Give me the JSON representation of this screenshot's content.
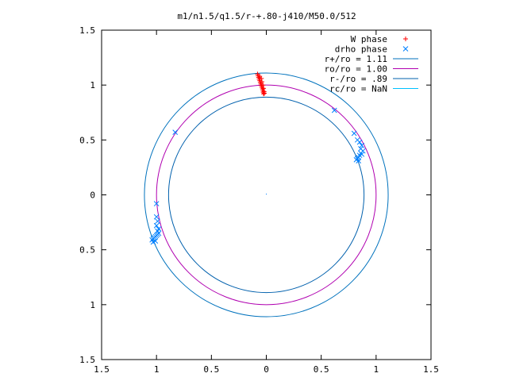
{
  "chart_data": {
    "type": "scatter",
    "title": "m1/n1.5/q1.5/r-+.80-j410/M50.0/512",
    "xlabel": "",
    "ylabel": "",
    "xlim": [
      -1.5,
      1.5
    ],
    "ylim": [
      -1.5,
      1.5
    ],
    "x_ticks": [
      "1.5",
      "1",
      "0.5",
      "0",
      "0.5",
      "1",
      "1.5"
    ],
    "y_ticks": [
      "1.5",
      "1",
      "0.5",
      "0",
      "0.5",
      "1",
      "1.5"
    ],
    "grid": false,
    "legend_position": "top-right",
    "series": [
      {
        "name": "W phase",
        "kind": "points",
        "marker": "plus",
        "color": "#ff0000",
        "points": [
          [
            -0.08,
            1.1
          ],
          [
            -0.075,
            1.085
          ],
          [
            -0.07,
            1.07
          ],
          [
            -0.065,
            1.055
          ],
          [
            -0.06,
            1.04
          ],
          [
            -0.055,
            1.025
          ],
          [
            -0.05,
            1.01
          ],
          [
            -0.045,
            0.995
          ],
          [
            -0.04,
            0.98
          ],
          [
            -0.035,
            0.965
          ],
          [
            -0.03,
            0.95
          ],
          [
            -0.028,
            0.935
          ],
          [
            -0.025,
            0.92
          ],
          [
            -0.06,
            1.08
          ],
          [
            -0.045,
            1.06
          ],
          [
            -0.04,
            1.03
          ],
          [
            -0.03,
            1.0
          ],
          [
            -0.025,
            0.97
          ],
          [
            -0.02,
            0.94
          ],
          [
            -0.018,
            0.925
          ]
        ]
      },
      {
        "name": "drho phase",
        "kind": "points",
        "marker": "cross",
        "color": "#0080ff",
        "points": [
          [
            -0.83,
            0.57
          ],
          [
            0.62,
            0.77
          ],
          [
            0.8,
            0.56
          ],
          [
            0.83,
            0.5
          ],
          [
            0.85,
            0.48
          ],
          [
            0.87,
            0.45
          ],
          [
            0.86,
            0.42
          ],
          [
            0.88,
            0.4
          ],
          [
            0.86,
            0.38
          ],
          [
            0.85,
            0.36
          ],
          [
            0.84,
            0.34
          ],
          [
            0.83,
            0.33
          ],
          [
            0.82,
            0.32
          ],
          [
            0.87,
            0.37
          ],
          [
            0.84,
            0.31
          ],
          [
            -1.0,
            -0.08
          ],
          [
            -1.0,
            -0.2
          ],
          [
            -0.99,
            -0.24
          ],
          [
            -1.0,
            -0.28
          ],
          [
            -0.98,
            -0.31
          ],
          [
            -0.99,
            -0.33
          ],
          [
            -0.98,
            -0.35
          ],
          [
            -1.0,
            -0.37
          ],
          [
            -1.01,
            -0.38
          ],
          [
            -1.02,
            -0.39
          ],
          [
            -1.03,
            -0.4
          ],
          [
            -1.04,
            -0.41
          ],
          [
            -1.03,
            -0.43
          ],
          [
            -1.01,
            -0.42
          ],
          [
            -0.99,
            -0.36
          ]
        ]
      },
      {
        "name": "r+/ro = 1.11",
        "kind": "circle",
        "radius": 1.11,
        "color": "#0072bd"
      },
      {
        "name": "ro/ro = 1.00",
        "kind": "circle",
        "radius": 1.0,
        "color": "#b000b0"
      },
      {
        "name": "r-/ro =  .89",
        "kind": "circle",
        "radius": 0.89,
        "color": "#0060ad"
      },
      {
        "name": "rc/ro = NaN",
        "kind": "circle",
        "radius": null,
        "color": "#00c0ff"
      }
    ]
  }
}
